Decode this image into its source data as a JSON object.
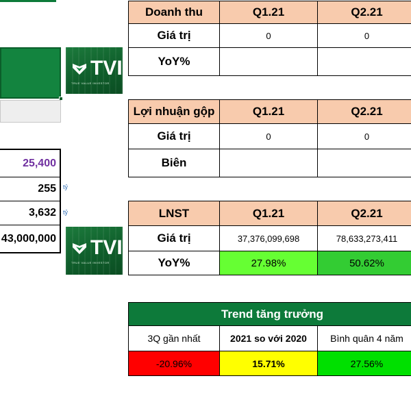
{
  "revenue": {
    "header": [
      "Doanh thu",
      "Q1.21",
      "Q2.21"
    ],
    "rows": [
      {
        "label": "Giá trị",
        "values": [
          "0",
          "0"
        ]
      },
      {
        "label": "YoY%",
        "values": [
          "",
          ""
        ]
      }
    ]
  },
  "gross_profit": {
    "header": [
      "Lợi nhuận gộp",
      "Q1.21",
      "Q2.21"
    ],
    "rows": [
      {
        "label": "Giá trị",
        "values": [
          "0",
          "0"
        ]
      },
      {
        "label": "Biên",
        "values": [
          "",
          ""
        ]
      }
    ]
  },
  "net_income": {
    "header": [
      "LNST",
      "Q1.21",
      "Q2.21"
    ],
    "rows": [
      {
        "label": "Giá trị",
        "values": [
          "37,376,099,698",
          "78,633,273,411"
        ]
      },
      {
        "label": "YoY%",
        "values": [
          "27.98%",
          "50.62%"
        ]
      }
    ]
  },
  "trend": {
    "title": "Trend tăng trưởng",
    "columns": [
      "3Q gần nhất",
      "2021 so với 2020",
      "Bình quân 4 năm"
    ],
    "values": [
      "-20.96%",
      "15.71%",
      "27.56%"
    ],
    "colors": [
      "#ff0000",
      "#ffff00",
      "#00e000"
    ]
  },
  "left_values": {
    "price": "25,400",
    "v1": "255",
    "v2": "3,632",
    "v3": "43,000,000",
    "unit1": "tỷ",
    "unit2": "tỷ"
  },
  "logo": {
    "word": "TVI",
    "tagline": "TRUE VALUE INVESTOR"
  },
  "colors": {
    "header_orange": "#f8cbad",
    "dark_green": "#0d7a3a",
    "yoy_green_1": "#66ff33",
    "yoy_green_2": "#33cc33",
    "price_purple": "#7030a0"
  }
}
